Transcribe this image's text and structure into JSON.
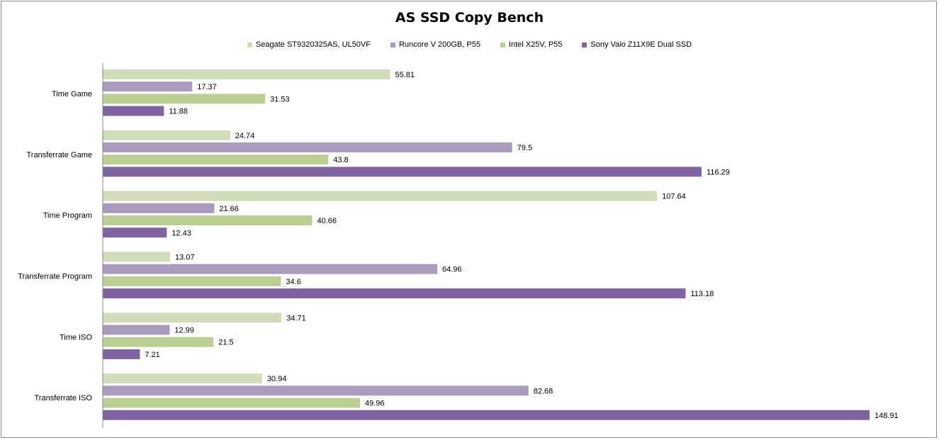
{
  "chart_data": {
    "type": "bar",
    "orientation": "horizontal",
    "title": "AS SSD  Copy Bench",
    "categories": [
      "Time Game",
      "Transferrate Game",
      "Time Program",
      "Transferrate Program",
      "Time ISO",
      "Transferrate ISO"
    ],
    "series": [
      {
        "name": "Seagate ST9320325AS, UL50VF",
        "color": "#d1ddb9",
        "values": [
          55.81,
          24.74,
          107.64,
          13.07,
          34.71,
          30.94
        ]
      },
      {
        "name": "Runcore V 200GB, P55",
        "color": "#a99bbd",
        "values": [
          17.37,
          79.5,
          21.66,
          64.96,
          12.99,
          82.68
        ]
      },
      {
        "name": "Intel X25V, P55",
        "color": "#bacf92",
        "values": [
          31.53,
          43.8,
          40.66,
          34.6,
          21.5,
          49.96
        ]
      },
      {
        "name": "Sony Vaio Z11X9E Dual SSD",
        "color": "#8064a2",
        "values": [
          11.88,
          116.29,
          12.43,
          113.18,
          7.21,
          148.91
        ]
      }
    ],
    "xlim": [
      0,
      148.91
    ],
    "grid": false,
    "legend_position": "top"
  }
}
